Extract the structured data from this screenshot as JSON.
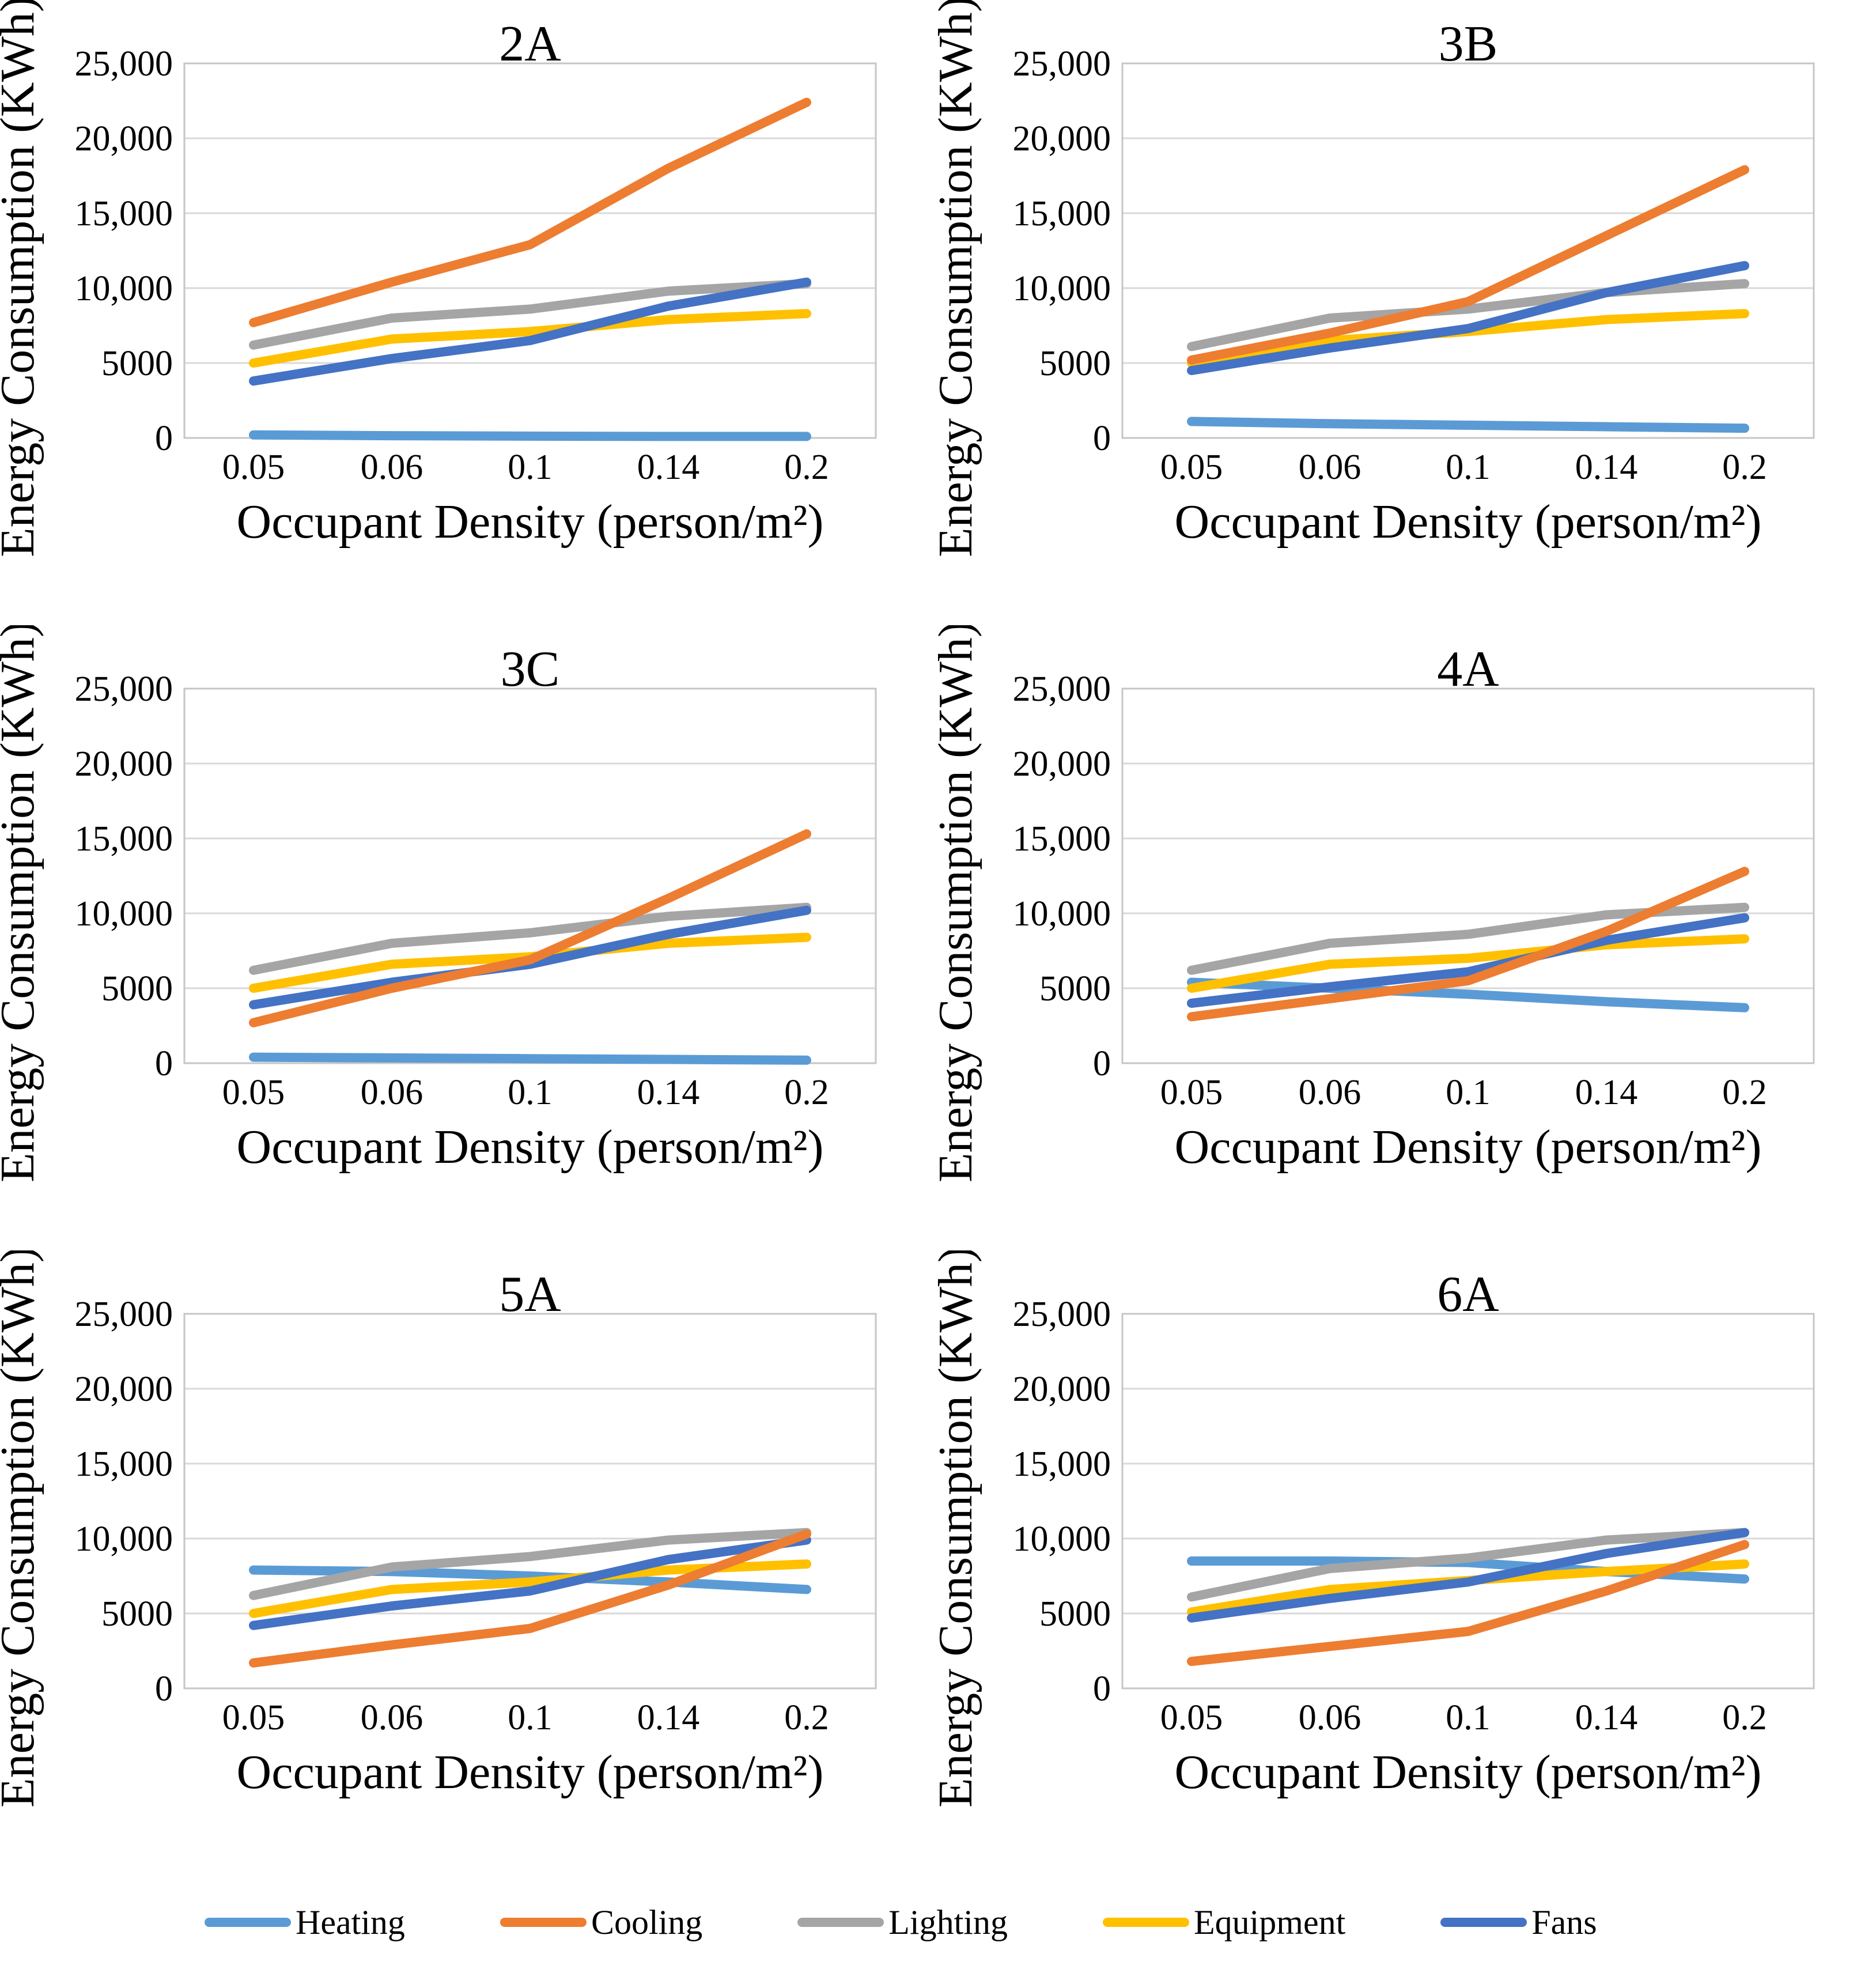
{
  "figure": {
    "description": "Grid of six line charts of energy consumption vs occupant density for climate zones",
    "panel_titles": [
      "2A",
      "3B",
      "3C",
      "4A",
      "5A",
      "6A"
    ]
  },
  "axes": {
    "x_label": "Occupant Density (person/m²)",
    "y_label": "Energy Consumption (KWh)",
    "x_categories": [
      "0.05",
      "0.06",
      "0.1",
      "0.14",
      "0.2"
    ],
    "y_ticks": [
      {
        "value": 0,
        "label": "0"
      },
      {
        "value": 5000,
        "label": "5000"
      },
      {
        "value": 10000,
        "label": "10,000"
      },
      {
        "value": 15000,
        "label": "15,000"
      },
      {
        "value": 20000,
        "label": "20,000"
      },
      {
        "value": 25000,
        "label": "25,000"
      }
    ],
    "y_min": 0,
    "y_max": 25000,
    "grid": "horizontal",
    "gridline_color": "#D9D9D9",
    "plot_border_color": "#C6C6C6"
  },
  "legend": [
    {
      "label": "Heating",
      "color": "#5B9BD5"
    },
    {
      "label": "Cooling",
      "color": "#ED7D31"
    },
    {
      "label": "Lighting",
      "color": "#A5A5A5"
    },
    {
      "label": "Equipment",
      "color": "#FFC000"
    },
    {
      "label": "Fans",
      "color": "#4472C4"
    }
  ],
  "series_z_order": [
    "Heating",
    "Lighting",
    "Equipment",
    "Fans",
    "Cooling"
  ],
  "chart_data": [
    {
      "type": "line",
      "title": "2A",
      "x": [
        "0.05",
        "0.06",
        "0.1",
        "0.14",
        "0.2"
      ],
      "xlabel": "Occupant Density (person/m²)",
      "ylabel": "Energy Consumption (KWh)",
      "ylim": [
        0,
        25000
      ],
      "series": [
        {
          "name": "Heating",
          "color": "#5B9BD5",
          "values": [
            200,
            150,
            120,
            100,
            100
          ]
        },
        {
          "name": "Cooling",
          "color": "#ED7D31",
          "values": [
            7700,
            10400,
            12900,
            18000,
            22400
          ]
        },
        {
          "name": "Lighting",
          "color": "#A5A5A5",
          "values": [
            6200,
            8000,
            8600,
            9800,
            10300
          ]
        },
        {
          "name": "Equipment",
          "color": "#FFC000",
          "values": [
            5000,
            6600,
            7100,
            7900,
            8300
          ]
        },
        {
          "name": "Fans",
          "color": "#4472C4",
          "values": [
            3800,
            5300,
            6500,
            8800,
            10400
          ]
        }
      ]
    },
    {
      "type": "line",
      "title": "3B",
      "x": [
        "0.05",
        "0.06",
        "0.1",
        "0.14",
        "0.2"
      ],
      "xlabel": "Occupant Density (person/m²)",
      "ylabel": "Energy Consumption (KWh)",
      "ylim": [
        0,
        25000
      ],
      "series": [
        {
          "name": "Heating",
          "color": "#5B9BD5",
          "values": [
            1100,
            950,
            850,
            750,
            650
          ]
        },
        {
          "name": "Cooling",
          "color": "#ED7D31",
          "values": [
            5200,
            7000,
            9100,
            13500,
            17900
          ]
        },
        {
          "name": "Lighting",
          "color": "#A5A5A5",
          "values": [
            6100,
            8000,
            8600,
            9700,
            10300
          ]
        },
        {
          "name": "Equipment",
          "color": "#FFC000",
          "values": [
            5000,
            6500,
            7100,
            7900,
            8300
          ]
        },
        {
          "name": "Fans",
          "color": "#4472C4",
          "values": [
            4500,
            6000,
            7300,
            9700,
            11500
          ]
        }
      ]
    },
    {
      "type": "line",
      "title": "3C",
      "x": [
        "0.05",
        "0.06",
        "0.1",
        "0.14",
        "0.2"
      ],
      "xlabel": "Occupant Density (person/m²)",
      "ylabel": "Energy Consumption (KWh)",
      "ylim": [
        0,
        25000
      ],
      "series": [
        {
          "name": "Heating",
          "color": "#5B9BD5",
          "values": [
            400,
            350,
            300,
            250,
            200
          ]
        },
        {
          "name": "Cooling",
          "color": "#ED7D31",
          "values": [
            2700,
            5000,
            6900,
            11000,
            15300
          ]
        },
        {
          "name": "Lighting",
          "color": "#A5A5A5",
          "values": [
            6200,
            8000,
            8700,
            9800,
            10400
          ]
        },
        {
          "name": "Equipment",
          "color": "#FFC000",
          "values": [
            5000,
            6600,
            7100,
            8000,
            8400
          ]
        },
        {
          "name": "Fans",
          "color": "#4472C4",
          "values": [
            3900,
            5400,
            6600,
            8600,
            10200
          ]
        }
      ]
    },
    {
      "type": "line",
      "title": "4A",
      "x": [
        "0.05",
        "0.06",
        "0.1",
        "0.14",
        "0.2"
      ],
      "xlabel": "Occupant Density (person/m²)",
      "ylabel": "Energy Consumption (KWh)",
      "ylim": [
        0,
        25000
      ],
      "series": [
        {
          "name": "Heating",
          "color": "#5B9BD5",
          "values": [
            5400,
            5000,
            4600,
            4100,
            3700
          ]
        },
        {
          "name": "Cooling",
          "color": "#ED7D31",
          "values": [
            3100,
            4300,
            5500,
            8800,
            12800
          ]
        },
        {
          "name": "Lighting",
          "color": "#A5A5A5",
          "values": [
            6200,
            8000,
            8600,
            9900,
            10400
          ]
        },
        {
          "name": "Equipment",
          "color": "#FFC000",
          "values": [
            5000,
            6600,
            7000,
            7900,
            8300
          ]
        },
        {
          "name": "Fans",
          "color": "#4472C4",
          "values": [
            4000,
            5100,
            6100,
            8200,
            9700
          ]
        }
      ]
    },
    {
      "type": "line",
      "title": "5A",
      "x": [
        "0.05",
        "0.06",
        "0.1",
        "0.14",
        "0.2"
      ],
      "xlabel": "Occupant Density (person/m²)",
      "ylabel": "Energy Consumption (KWh)",
      "ylim": [
        0,
        25000
      ],
      "series": [
        {
          "name": "Heating",
          "color": "#5B9BD5",
          "values": [
            7900,
            7800,
            7500,
            7100,
            6600
          ]
        },
        {
          "name": "Cooling",
          "color": "#ED7D31",
          "values": [
            1700,
            2900,
            4000,
            6900,
            10300
          ]
        },
        {
          "name": "Lighting",
          "color": "#A5A5A5",
          "values": [
            6200,
            8100,
            8800,
            9900,
            10400
          ]
        },
        {
          "name": "Equipment",
          "color": "#FFC000",
          "values": [
            5000,
            6600,
            7100,
            7900,
            8300
          ]
        },
        {
          "name": "Fans",
          "color": "#4472C4",
          "values": [
            4200,
            5500,
            6500,
            8600,
            9900
          ]
        }
      ]
    },
    {
      "type": "line",
      "title": "6A",
      "x": [
        "0.05",
        "0.06",
        "0.1",
        "0.14",
        "0.2"
      ],
      "xlabel": "Occupant Density (person/m²)",
      "ylabel": "Energy Consumption (KWh)",
      "ylim": [
        0,
        25000
      ],
      "series": [
        {
          "name": "Heating",
          "color": "#5B9BD5",
          "values": [
            8500,
            8500,
            8400,
            7800,
            7300
          ]
        },
        {
          "name": "Cooling",
          "color": "#ED7D31",
          "values": [
            1800,
            2800,
            3800,
            6500,
            9600
          ]
        },
        {
          "name": "Lighting",
          "color": "#A5A5A5",
          "values": [
            6100,
            8000,
            8700,
            9900,
            10400
          ]
        },
        {
          "name": "Equipment",
          "color": "#FFC000",
          "values": [
            5100,
            6600,
            7200,
            7800,
            8300
          ]
        },
        {
          "name": "Fans",
          "color": "#4472C4",
          "values": [
            4700,
            6000,
            7100,
            9000,
            10400
          ]
        }
      ]
    }
  ]
}
